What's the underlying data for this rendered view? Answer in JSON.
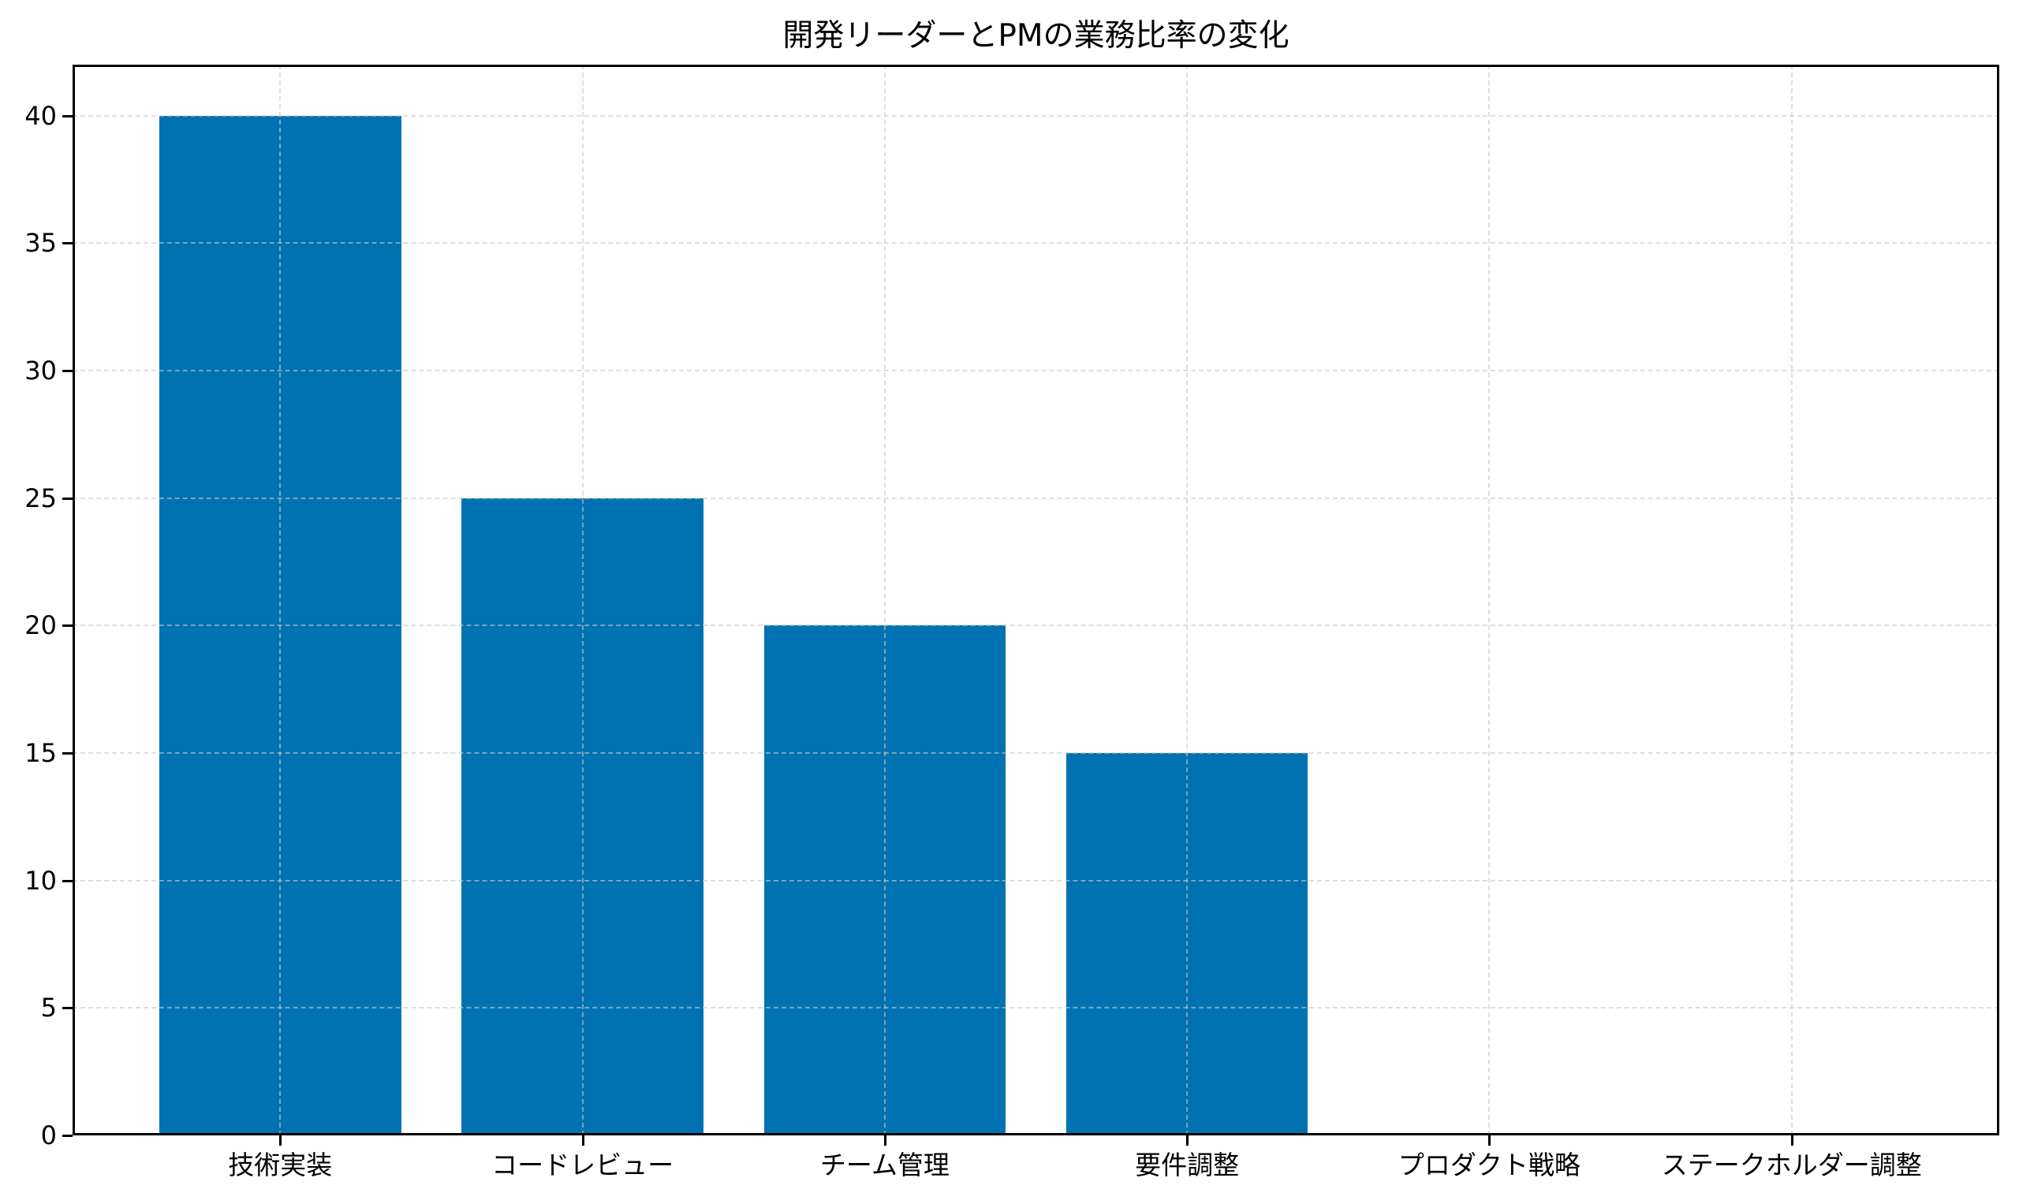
{
  "chart_data": {
    "type": "bar",
    "title": "開発リーダーとPMの業務比率の変化",
    "xlabel": "",
    "ylabel": "",
    "categories": [
      "技術実装",
      "コードレビュー",
      "チーム管理",
      "要件調整",
      "プロダクト戦略",
      "ステークホルダー調整"
    ],
    "values": [
      40,
      25,
      20,
      15,
      0,
      0
    ],
    "ylim": [
      0,
      42
    ],
    "yticks": [
      0,
      5,
      10,
      15,
      20,
      25,
      30,
      35,
      40
    ],
    "grid": true,
    "grid_style": "dashed",
    "legend": null,
    "bar_color": "#0072B2",
    "bar_width": 0.8
  },
  "title": "開発リーダーとPMの業務比率の変化",
  "y_tick_labels": [
    "0",
    "5",
    "10",
    "15",
    "20",
    "25",
    "30",
    "35",
    "40"
  ],
  "x_tick_labels": [
    "技術実装",
    "コードレビュー",
    "チーム管理",
    "要件調整",
    "プロダクト戦略",
    "ステークホルダー調整"
  ],
  "colors": {
    "bar": "#0072B2",
    "grid": "#d9d9d9",
    "axis": "#000000",
    "background": "#ffffff"
  }
}
